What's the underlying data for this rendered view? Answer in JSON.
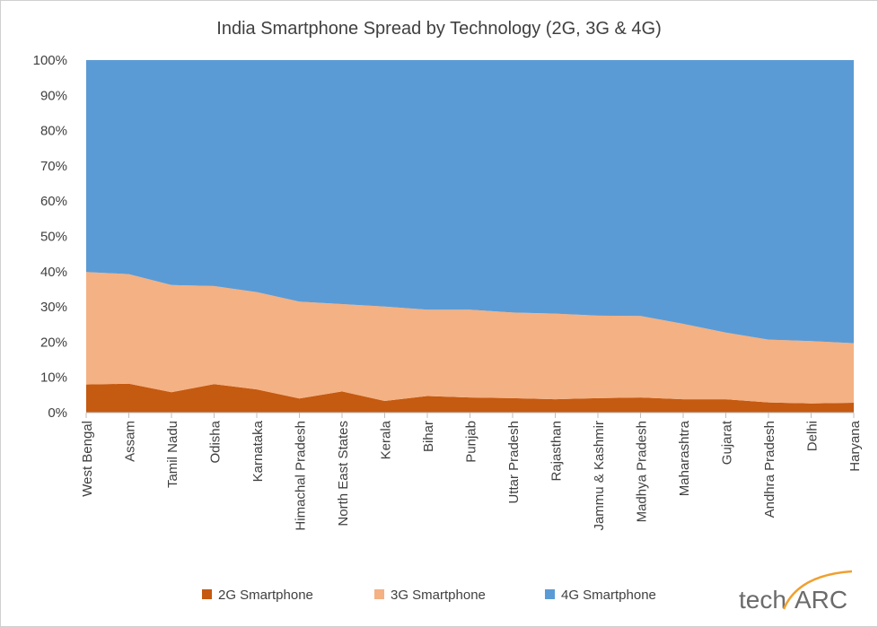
{
  "chart_data": {
    "type": "area",
    "stacked": true,
    "title": "India Smartphone Spread by Technology (2G, 3G & 4G)",
    "categories": [
      "West Bengal",
      "Assam",
      "Tamil Nadu",
      "Odisha",
      "Karnataka",
      "Himachal Pradesh",
      "North East States",
      "Kerala",
      "Bihar",
      "Punjab",
      "Uttar Pradesh",
      "Rajasthan",
      "Jammu & Kashmir",
      "Madhya Pradesh",
      "Maharashtra",
      "Gujarat",
      "Andhra Pradesh",
      "Delhi",
      "Haryana"
    ],
    "series": [
      {
        "name": "2G Smartphone",
        "color": "#c55a11",
        "values": [
          8,
          8.2,
          5.8,
          8.1,
          6.6,
          4,
          6,
          3.3,
          4.7,
          4.3,
          4.1,
          3.8,
          4.1,
          4.3,
          3.8,
          3.8,
          2.9,
          2.6,
          2.8
        ]
      },
      {
        "name": "3G Smartphone",
        "color": "#f4b183",
        "values": [
          31.9,
          31.1,
          30.4,
          27.8,
          27.6,
          27.5,
          24.8,
          26.8,
          24.5,
          24.9,
          24.3,
          24.3,
          23.4,
          23.1,
          21.4,
          18.9,
          17.8,
          17.7,
          16.9
        ]
      },
      {
        "name": "4G Smartphone",
        "color": "#5b9bd5",
        "values": [
          60.1,
          60.7,
          63.8,
          64.1,
          65.8,
          68.5,
          69.2,
          69.9,
          70.8,
          70.8,
          71.6,
          71.9,
          72.5,
          72.6,
          74.8,
          77.3,
          79.3,
          79.7,
          80.3
        ]
      }
    ],
    "ylim": [
      0,
      100
    ],
    "yticks": [
      "0%",
      "10%",
      "20%",
      "30%",
      "40%",
      "50%",
      "60%",
      "70%",
      "80%",
      "90%",
      "100%"
    ],
    "legend": "bottom"
  },
  "logo": {
    "text_left": "tech",
    "text_right": "ARC",
    "arc_color": "#f0a030"
  }
}
